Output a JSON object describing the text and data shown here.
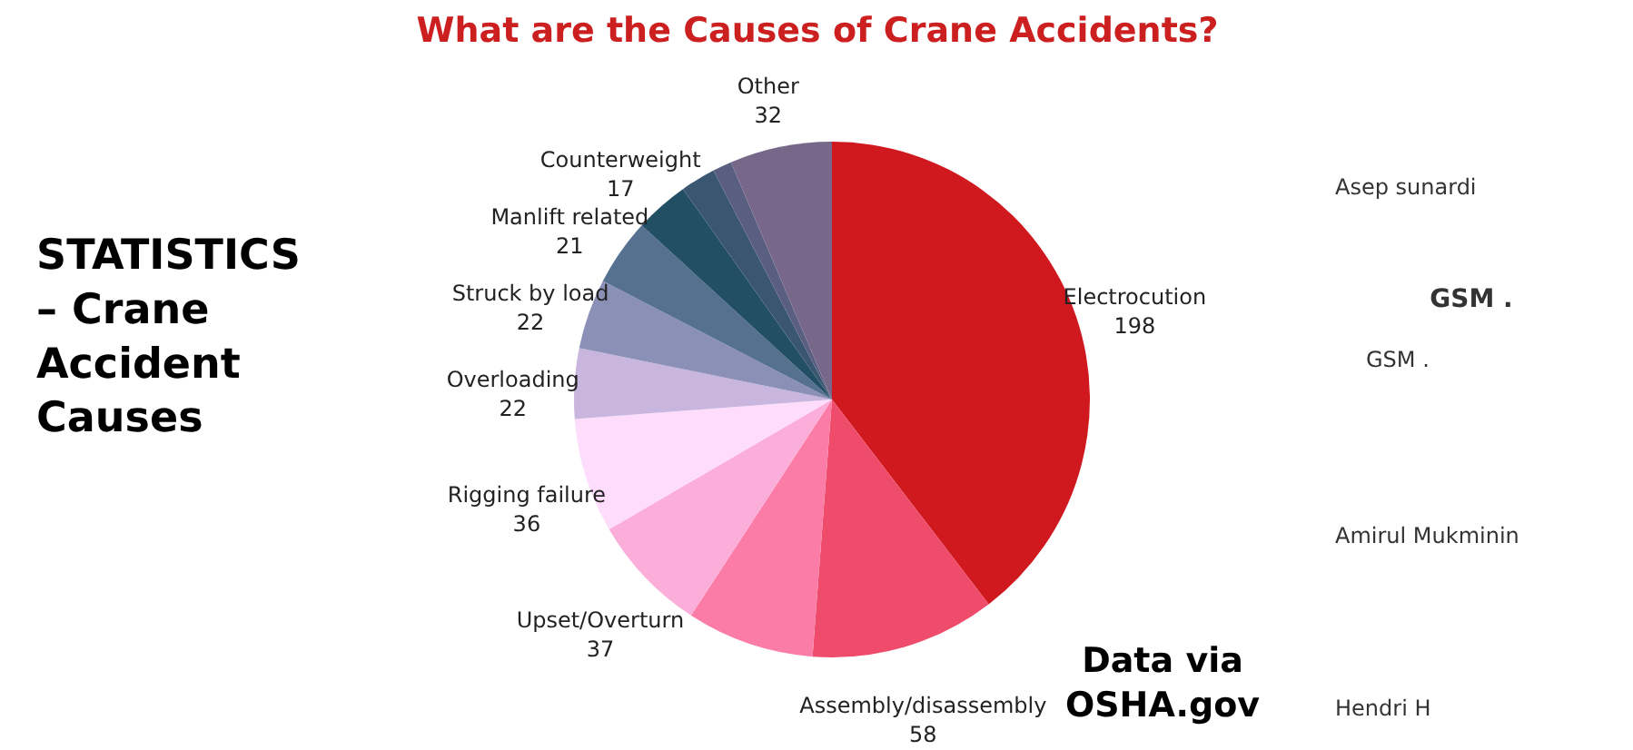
{
  "chart_data": {
    "type": "pie",
    "title": "What are the Causes of Crane Accidents?",
    "categories": [
      "Electrocution",
      "Assembly/disassembly",
      null,
      "Upset/Overturn",
      "Rigging failure",
      "Overloading",
      "Struck by load",
      "Manlift related",
      "Counterweight",
      null,
      null,
      "Other"
    ],
    "values": [
      198,
      58,
      40,
      37,
      36,
      22,
      22,
      21,
      17,
      11,
      6,
      32
    ],
    "value_labels": [
      "198",
      "58",
      null,
      "37",
      "36",
      "22",
      "22",
      "21",
      "17",
      null,
      null,
      "32"
    ],
    "colors": [
      "#d0191e",
      "#ef4c6c",
      "#fb7ca6",
      "#fcaedb",
      "#fedcfc",
      "#c8b6de",
      "#8b90b6",
      "#56708f",
      "#234f64",
      "#3a5670",
      "#5a5f82",
      "#776889"
    ],
    "annotations": [
      "STATISTICS\n– Crane\nAccident\nCauses",
      "Data via\nOSHA.gov",
      "Asep sunardi",
      "GSM .",
      "GSM .",
      "Amirul Mukminin",
      "Hendri H"
    ]
  }
}
